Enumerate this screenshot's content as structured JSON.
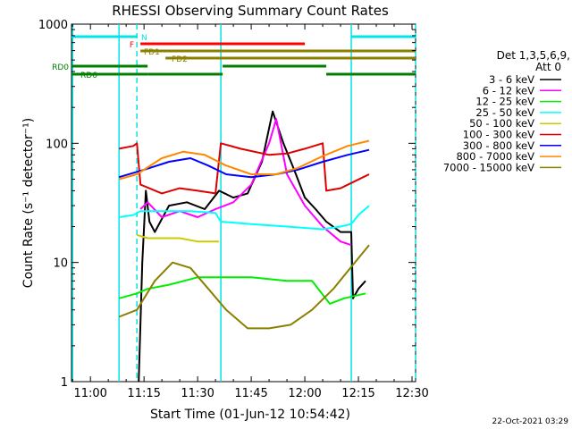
{
  "chart_data": {
    "type": "line",
    "title": "RHESSI Observing Summary Count Rates",
    "xlabel": "Start Time (01-Jun-12 10:54:42)",
    "ylabel": "Count Rate (s⁻¹ detector⁻¹)",
    "y_scale": "log",
    "ylim": [
      1,
      1000
    ],
    "xlim": [
      "10:54:42",
      "12:31:00"
    ],
    "x_ticks": [
      "11:00",
      "11:15",
      "11:30",
      "11:45",
      "12:00",
      "12:15",
      "12:30"
    ],
    "y_ticks": [
      "1",
      "10",
      "100",
      "1000"
    ],
    "legend_title_line1": "Det 1,3,5,6,9,",
    "legend_title_line2": "Att 0",
    "legend_placement": "right",
    "timestamp": "22-Oct-2021 03:29",
    "flags": [
      {
        "label": "N",
        "color": "#00e5e5",
        "segments": [
          [
            "10:54:42",
            "11:13:00"
          ],
          [
            "12:13:00",
            "12:31:00"
          ]
        ]
      },
      {
        "label": "F",
        "color": "#ff0000",
        "segments": [
          [
            "11:14:00",
            "12:00:00"
          ]
        ]
      },
      {
        "label": "FD1",
        "color": "#8b7f00",
        "segments": [
          [
            "11:14:00",
            "12:31:00"
          ]
        ]
      },
      {
        "label": "FD2",
        "color": "#8b7f00",
        "segments": [
          [
            "11:21:00",
            "12:31:00"
          ]
        ]
      },
      {
        "label": "RD0",
        "color": "#007f00",
        "segments": [
          [
            "10:54:42",
            "11:16:00"
          ],
          [
            "11:37:00",
            "12:06:00"
          ]
        ]
      },
      {
        "label": "RD6",
        "color": "#007f00",
        "segments": [
          [
            "10:54:42",
            "11:16:00"
          ],
          [
            "11:16:00",
            "11:37:00"
          ],
          [
            "12:06:00",
            "12:31:00"
          ]
        ]
      }
    ],
    "time_markers": [
      {
        "time": "10:55:00",
        "style": "solid",
        "color": "#00e5e5"
      },
      {
        "time": "11:08:00",
        "style": "solid",
        "color": "#00e5e5"
      },
      {
        "time": "11:13:00",
        "style": "dashed",
        "color": "#00e5e5"
      },
      {
        "time": "11:36:30",
        "style": "solid",
        "color": "#00e5e5"
      },
      {
        "time": "12:13:00",
        "style": "solid",
        "color": "#00e5e5"
      },
      {
        "time": "12:31:00",
        "style": "dashed",
        "color": "#00e5e5"
      }
    ],
    "series": [
      {
        "name": "3 - 6 keV",
        "color": "#000000",
        "points": [
          [
            "11:13:30",
            1
          ],
          [
            "11:14:30",
            10
          ],
          [
            "11:15:30",
            40
          ],
          [
            "11:16:30",
            22
          ],
          [
            "11:18:00",
            18
          ],
          [
            "11:22:00",
            30
          ],
          [
            "11:27:00",
            32
          ],
          [
            "11:32:00",
            28
          ],
          [
            "11:36:00",
            40
          ],
          [
            "11:40:00",
            35
          ],
          [
            "11:44:00",
            38
          ],
          [
            "11:48:00",
            70
          ],
          [
            "11:51:00",
            185
          ],
          [
            "11:54:00",
            100
          ],
          [
            "11:57:00",
            60
          ],
          [
            "12:00:00",
            35
          ],
          [
            "12:03:00",
            28
          ],
          [
            "12:06:00",
            22
          ],
          [
            "12:10:00",
            18
          ],
          [
            "12:13:00",
            18
          ],
          [
            "12:13:30",
            5
          ],
          [
            "12:15:00",
            6
          ],
          [
            "12:17:00",
            7
          ]
        ]
      },
      {
        "name": "6 - 12 keV",
        "color": "#ff00ff",
        "points": [
          [
            "11:14:00",
            28
          ],
          [
            "11:16:00",
            32
          ],
          [
            "11:20:00",
            24
          ],
          [
            "11:25:00",
            27
          ],
          [
            "11:30:00",
            24
          ],
          [
            "11:35:00",
            28
          ],
          [
            "11:40:00",
            32
          ],
          [
            "11:45:00",
            45
          ],
          [
            "11:50:00",
            100
          ],
          [
            "11:52:00",
            160
          ],
          [
            "11:55:00",
            55
          ],
          [
            "12:00:00",
            30
          ],
          [
            "12:05:00",
            20
          ],
          [
            "12:10:00",
            15
          ],
          [
            "12:13:00",
            14
          ]
        ]
      },
      {
        "name": "12 - 25 keV",
        "color": "#00ee00",
        "points": [
          [
            "11:08:00",
            5
          ],
          [
            "11:13:00",
            5.5
          ],
          [
            "11:16:00",
            6
          ],
          [
            "11:22:00",
            6.5
          ],
          [
            "11:30:00",
            7.5
          ],
          [
            "11:36:00",
            7.5
          ],
          [
            "11:45:00",
            7.5
          ],
          [
            "11:55:00",
            7
          ],
          [
            "12:02:00",
            7
          ],
          [
            "12:07:00",
            4.5
          ],
          [
            "12:11:00",
            5
          ],
          [
            "12:17:00",
            5.5
          ]
        ]
      },
      {
        "name": "25 - 50 keV",
        "color": "#00ffff",
        "points": [
          [
            "11:08:00",
            24
          ],
          [
            "11:12:00",
            25
          ],
          [
            "11:14:00",
            27
          ],
          [
            "11:20:00",
            27
          ],
          [
            "11:28:00",
            27
          ],
          [
            "11:35:00",
            26
          ],
          [
            "11:36:30",
            22
          ],
          [
            "11:45:00",
            21
          ],
          [
            "11:55:00",
            20
          ],
          [
            "12:05:00",
            19
          ],
          [
            "12:10:00",
            20
          ],
          [
            "12:13:00",
            21
          ],
          [
            "12:15:00",
            25
          ],
          [
            "12:18:00",
            30
          ]
        ]
      },
      {
        "name": "50 - 100 keV",
        "color": "#cccc00",
        "points": [
          [
            "11:13:00",
            17
          ],
          [
            "11:16:00",
            16
          ],
          [
            "11:20:00",
            16
          ],
          [
            "11:25:00",
            16
          ],
          [
            "11:30:00",
            15
          ],
          [
            "11:36:00",
            15
          ]
        ]
      },
      {
        "name": "100 - 300 keV",
        "color": "#dd0000",
        "points": [
          [
            "11:08:00",
            90
          ],
          [
            "11:12:00",
            95
          ],
          [
            "11:13:00",
            100
          ],
          [
            "11:14:00",
            45
          ],
          [
            "11:20:00",
            38
          ],
          [
            "11:25:00",
            42
          ],
          [
            "11:30:00",
            40
          ],
          [
            "11:35:00",
            38
          ],
          [
            "11:36:30",
            100
          ],
          [
            "11:42:00",
            90
          ],
          [
            "11:50:00",
            80
          ],
          [
            "11:55:00",
            82
          ],
          [
            "12:00:00",
            90
          ],
          [
            "12:05:00",
            100
          ],
          [
            "12:06:00",
            40
          ],
          [
            "12:10:00",
            42
          ],
          [
            "12:14:00",
            48
          ],
          [
            "12:18:00",
            55
          ]
        ]
      },
      {
        "name": "300 - 800 keV",
        "color": "#0000ff",
        "points": [
          [
            "11:08:00",
            52
          ],
          [
            "11:15:00",
            60
          ],
          [
            "11:22:00",
            70
          ],
          [
            "11:28:00",
            75
          ],
          [
            "11:33:00",
            65
          ],
          [
            "11:38:00",
            55
          ],
          [
            "11:45:00",
            52
          ],
          [
            "11:52:00",
            55
          ],
          [
            "11:58:00",
            60
          ],
          [
            "12:05:00",
            70
          ],
          [
            "12:12:00",
            80
          ],
          [
            "12:18:00",
            88
          ]
        ]
      },
      {
        "name": "800 - 7000 keV",
        "color": "#ff8800",
        "points": [
          [
            "11:08:00",
            50
          ],
          [
            "11:13:00",
            55
          ],
          [
            "11:20:00",
            75
          ],
          [
            "11:26:00",
            85
          ],
          [
            "11:32:00",
            80
          ],
          [
            "11:38:00",
            65
          ],
          [
            "11:45:00",
            55
          ],
          [
            "11:52:00",
            55
          ],
          [
            "11:58:00",
            62
          ],
          [
            "12:05:00",
            78
          ],
          [
            "12:12:00",
            95
          ],
          [
            "12:18:00",
            105
          ]
        ]
      },
      {
        "name": "7000 - 15000 keV",
        "color": "#8b7f00",
        "points": [
          [
            "11:08:00",
            3.5
          ],
          [
            "11:13:00",
            4
          ],
          [
            "11:18:00",
            7
          ],
          [
            "11:23:00",
            10
          ],
          [
            "11:28:00",
            9
          ],
          [
            "11:33:00",
            6
          ],
          [
            "11:38:00",
            4
          ],
          [
            "11:44:00",
            2.8
          ],
          [
            "11:50:00",
            2.8
          ],
          [
            "11:56:00",
            3
          ],
          [
            "12:02:00",
            4
          ],
          [
            "12:08:00",
            6
          ],
          [
            "12:14:00",
            10
          ],
          [
            "12:18:00",
            14
          ]
        ]
      }
    ]
  }
}
